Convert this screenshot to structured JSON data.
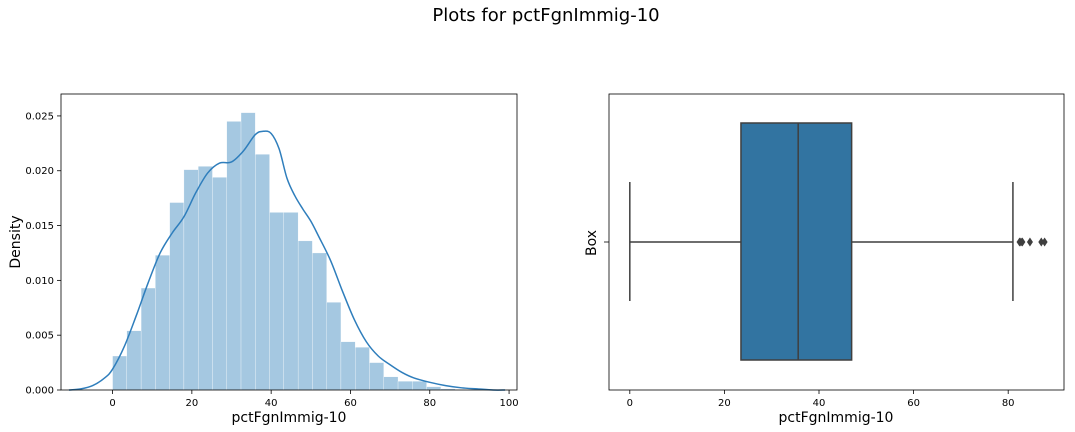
{
  "figure": {
    "title": "Plots for pctFgnImmig-10"
  },
  "chart_data": [
    {
      "type": "histogram",
      "xlabel": "pctFgnImmig-10",
      "ylabel": "Density",
      "xlim": [
        -13,
        102
      ],
      "ylim": [
        0,
        0.027
      ],
      "xticks": [
        "0",
        "20",
        "40",
        "60",
        "80",
        "100"
      ],
      "yticks": [
        "0.000",
        "0.005",
        "0.010",
        "0.015",
        "0.020",
        "0.025"
      ],
      "grid": false,
      "bar_color": "#a5c8e1",
      "line_color": "#2f7ebc",
      "bin_edges": [
        0,
        3.6,
        7.2,
        10.8,
        14.4,
        18.0,
        21.6,
        25.2,
        28.8,
        32.4,
        36.0,
        39.6,
        43.2,
        46.8,
        50.4,
        54.0,
        57.6,
        61.2,
        64.8,
        68.4,
        72.0,
        75.6,
        79.2,
        82.8,
        86.4
      ],
      "bin_density": [
        0.0031,
        0.0054,
        0.0093,
        0.0123,
        0.0171,
        0.0201,
        0.0204,
        0.0194,
        0.0245,
        0.0253,
        0.0215,
        0.0162,
        0.0162,
        0.0136,
        0.0125,
        0.008,
        0.0044,
        0.0039,
        0.0025,
        0.0012,
        0.0008,
        0.0008,
        0.0003,
        0.0001
      ],
      "kde": {
        "x": [
          -11,
          -8,
          -5,
          -2,
          0,
          3,
          6,
          9,
          12,
          15,
          18,
          21,
          24,
          27,
          30,
          33,
          36,
          38,
          40,
          42,
          44,
          46,
          48,
          50,
          52,
          55,
          58,
          61,
          64,
          67,
          70,
          73,
          76,
          80,
          84,
          88,
          92,
          96,
          99
        ],
        "y": [
          0.0,
          0.0001,
          0.0004,
          0.0011,
          0.0019,
          0.004,
          0.0068,
          0.0098,
          0.0125,
          0.0143,
          0.0158,
          0.018,
          0.0198,
          0.0207,
          0.0208,
          0.0218,
          0.0233,
          0.0236,
          0.0234,
          0.022,
          0.0193,
          0.0177,
          0.0165,
          0.0154,
          0.014,
          0.0118,
          0.009,
          0.0064,
          0.0044,
          0.0031,
          0.0023,
          0.0016,
          0.0011,
          0.0007,
          0.0004,
          0.0002,
          0.0001,
          0.0,
          0.0
        ]
      }
    },
    {
      "type": "box",
      "xlabel": "pctFgnImmig-10",
      "ylabel": "Box",
      "xlim": [
        -4.4,
        91.8
      ],
      "xticks": [
        "0",
        "20",
        "40",
        "60",
        "80"
      ],
      "grid": false,
      "box_color": "#3274a1",
      "line_color": "#3f3f3f",
      "whisker_low": 0,
      "q1": 23.5,
      "median": 35.6,
      "q3": 46.9,
      "whisker_high": 81.0,
      "outliers": [
        82.4,
        82.7,
        83.0,
        84.6,
        87.0,
        87.7
      ]
    }
  ]
}
